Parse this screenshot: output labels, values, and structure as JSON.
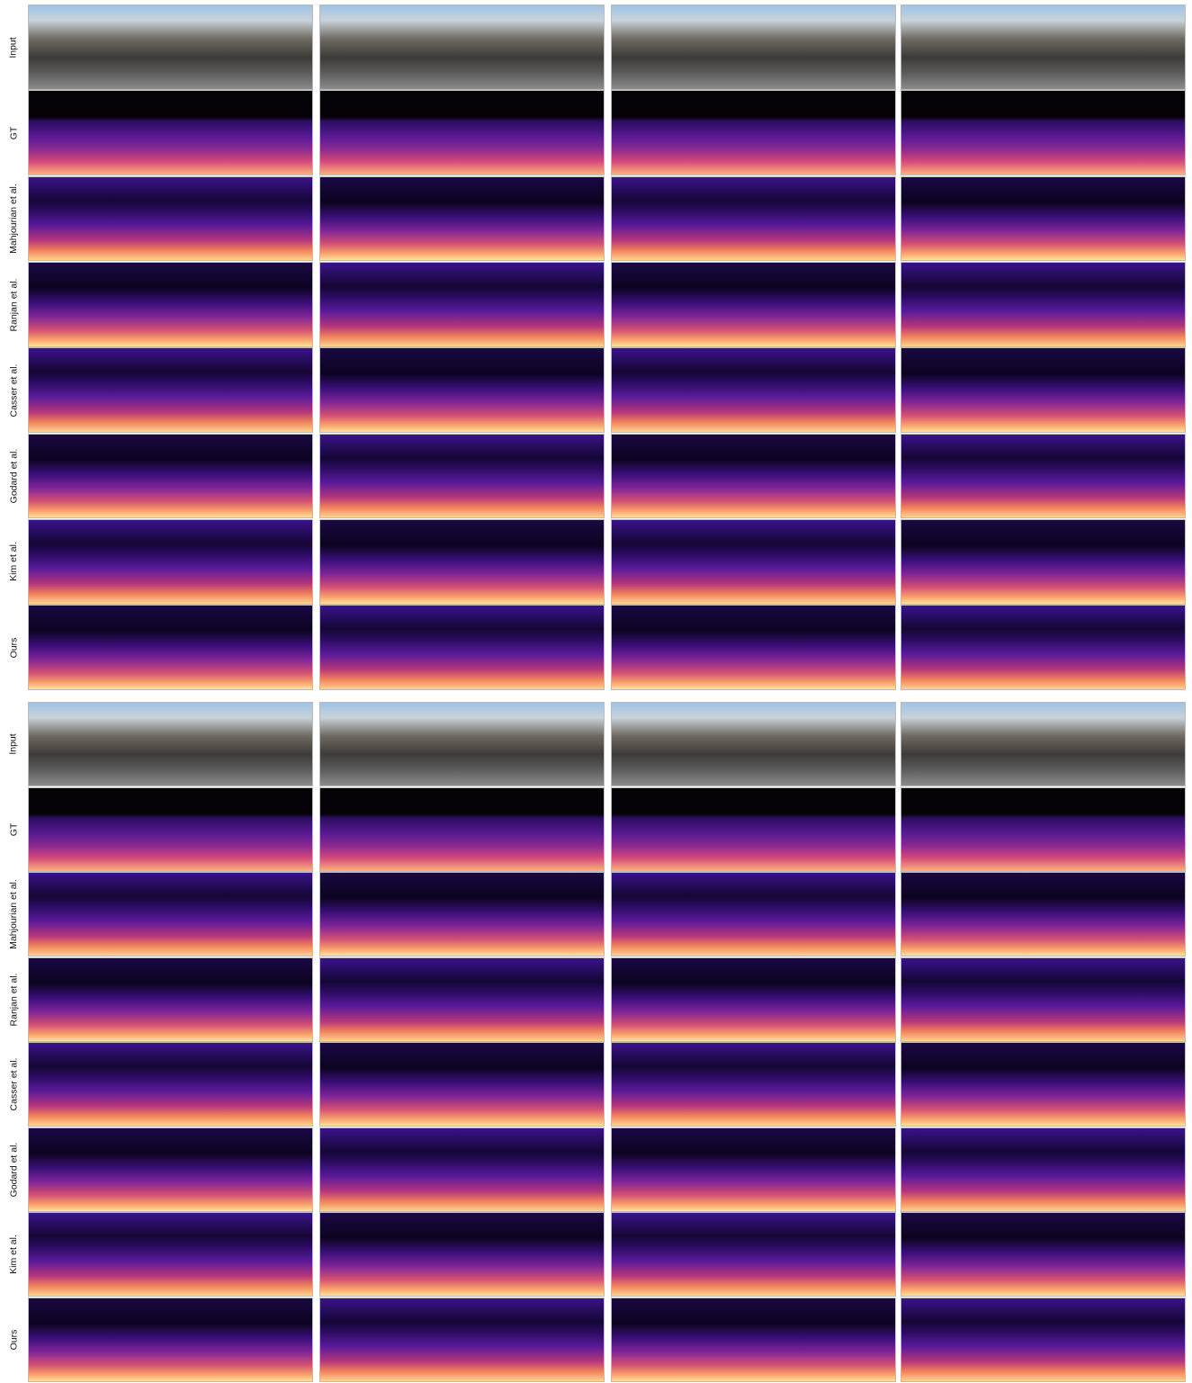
{
  "blocks": [
    {
      "row_labels": [
        "Input",
        "GT",
        "Mahjourian et al.",
        "Ranjan et al.",
        "Casser et al.",
        "Godard et al.",
        "Kim et al.",
        "Ours"
      ]
    },
    {
      "row_labels": [
        "Input",
        "GT",
        "Mahjourian et al.",
        "Ranjan et al.",
        "Casser et al.",
        "Godard et al.",
        "Kim et al.",
        "Ours"
      ]
    }
  ]
}
